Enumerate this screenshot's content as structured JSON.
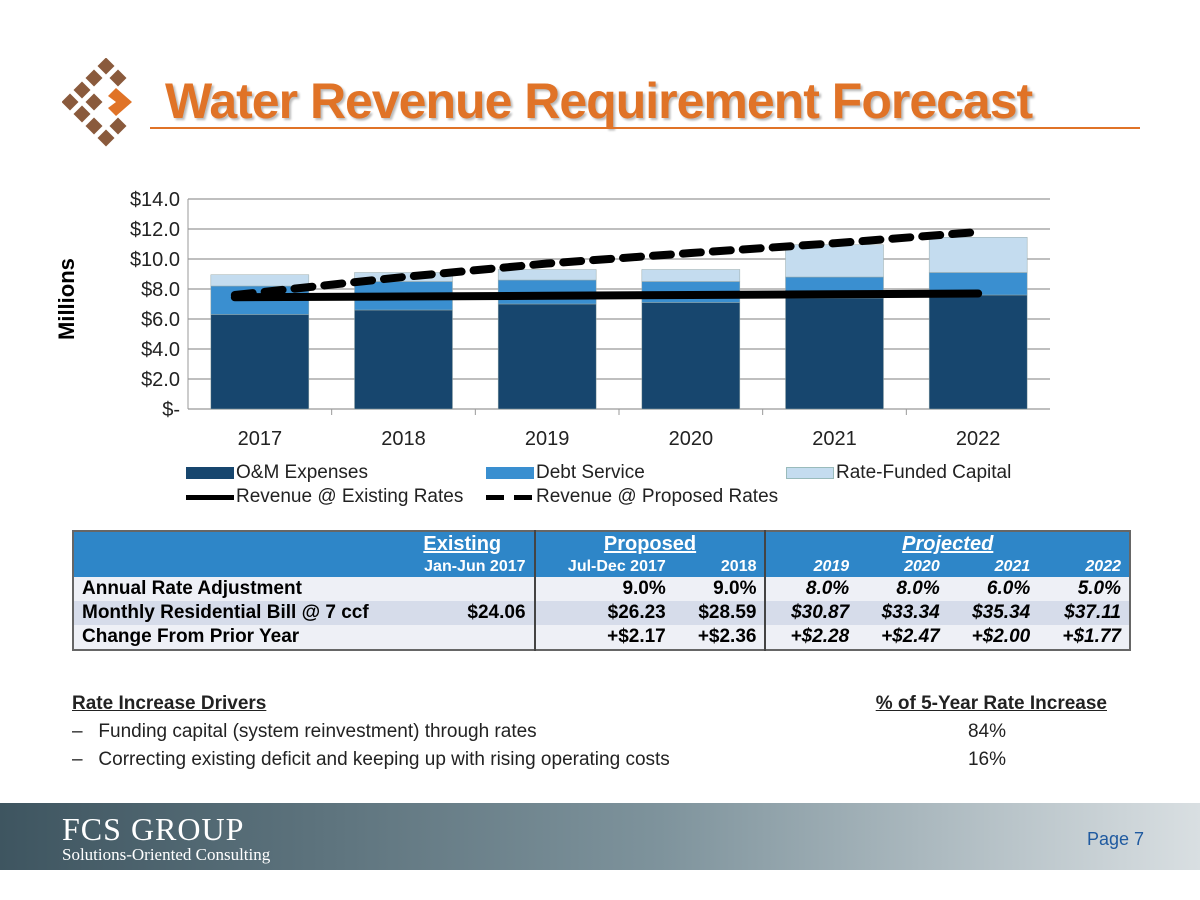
{
  "header": {
    "title": "Water Revenue Requirement Forecast"
  },
  "chart_data": {
    "type": "bar",
    "stacked": true,
    "ylabel": "Millions",
    "ylim": [
      0,
      14
    ],
    "yticks": [
      "$-",
      "$2.0",
      "$4.0",
      "$6.0",
      "$8.0",
      "$10.0",
      "$12.0",
      "$14.0"
    ],
    "categories": [
      "2017",
      "2018",
      "2019",
      "2020",
      "2021",
      "2022"
    ],
    "series": [
      {
        "name": "O&M Expenses",
        "type": "bar",
        "color": "#17466e",
        "values": [
          6.3,
          6.6,
          7.0,
          7.1,
          7.4,
          7.6
        ]
      },
      {
        "name": "Debt Service",
        "type": "bar",
        "color": "#3a8fd0",
        "values": [
          1.9,
          1.9,
          1.6,
          1.4,
          1.4,
          1.5
        ]
      },
      {
        "name": "Rate-Funded Capital",
        "type": "bar",
        "color": "#c4dcef",
        "values": [
          0.75,
          0.6,
          0.7,
          0.8,
          2.15,
          2.35
        ]
      },
      {
        "name": "Revenue @ Existing Rates",
        "type": "line",
        "style": "solid",
        "color": "#000000",
        "values": [
          7.45,
          7.5,
          7.55,
          7.6,
          7.65,
          7.7
        ]
      },
      {
        "name": "Revenue @ Proposed Rates",
        "type": "line",
        "style": "dashed",
        "color": "#000000",
        "values": [
          7.6,
          8.8,
          9.7,
          10.4,
          11.05,
          11.8
        ]
      }
    ],
    "legend": "bottom"
  },
  "table": {
    "groups": {
      "existing": "Existing",
      "proposed": "Proposed",
      "projected": "Projected"
    },
    "columns": [
      "Jan-Jun 2017",
      "Jul-Dec 2017",
      "2018",
      "2019",
      "2020",
      "2021",
      "2022"
    ],
    "rows": [
      {
        "label": "Annual Rate Adjustment",
        "values": [
          "",
          "9.0%",
          "9.0%",
          "8.0%",
          "8.0%",
          "6.0%",
          "5.0%"
        ]
      },
      {
        "label": "Monthly Residential Bill @ 7 ccf",
        "values": [
          "$24.06",
          "$26.23",
          "$28.59",
          "$30.87",
          "$33.34",
          "$35.34",
          "$37.11"
        ]
      },
      {
        "label": "Change From Prior Year",
        "values": [
          "",
          "+$2.17",
          "+$2.36",
          "+$2.28",
          "+$2.47",
          "+$2.00",
          "+$1.77"
        ]
      }
    ]
  },
  "drivers": {
    "heading": "Rate Increase Drivers",
    "pct_heading": "% of 5-Year Rate Increase",
    "items": [
      {
        "dash": "–",
        "text": "Funding capital (system reinvestment) through rates",
        "pct": "84%"
      },
      {
        "dash": "–",
        "text": "Correcting existing deficit and keeping up with rising operating costs",
        "pct": "16%"
      }
    ]
  },
  "footer": {
    "company": "FCS GROUP",
    "tagline": "Solutions-Oriented Consulting",
    "page": "Page 7"
  }
}
